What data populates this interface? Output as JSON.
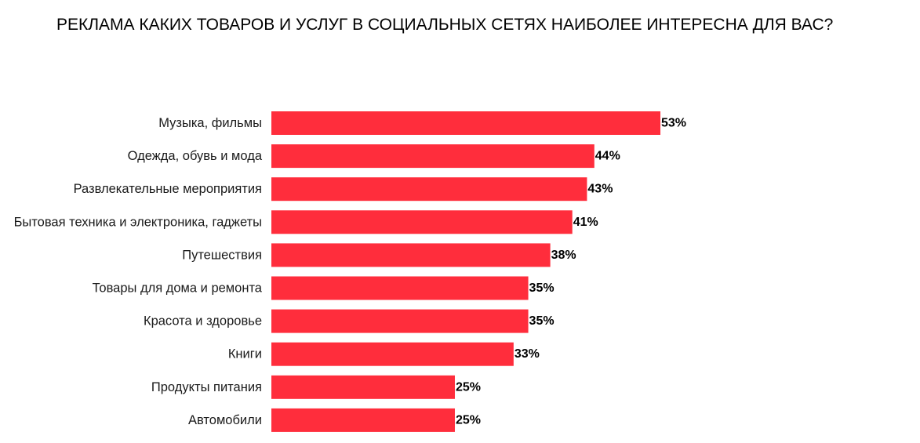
{
  "chart_data": {
    "type": "bar",
    "orientation": "horizontal",
    "title": "РЕКЛАМА КАКИХ ТОВАРОВ И УСЛУГ В СОЦИАЛЬНЫХ СЕТЯХ НАИБОЛЕЕ ИНТЕРЕСНА ДЛЯ ВАС?",
    "categories": [
      "Музыка, фильмы",
      "Одежда, обувь и мода",
      "Развлекательные мероприятия",
      "Бытовая техника и электроника, гаджеты",
      "Путешествия",
      "Товары для дома и ремонта",
      "Красота и здоровье",
      "Книги",
      "Продукты питания",
      "Автомобили"
    ],
    "values": [
      53,
      44,
      43,
      41,
      38,
      35,
      35,
      33,
      25,
      25
    ],
    "value_labels": [
      "53%",
      "44%",
      "43%",
      "41%",
      "38%",
      "35%",
      "35%",
      "33%",
      "25%",
      "25%"
    ],
    "xlim": [
      0,
      53
    ],
    "grid": false,
    "legend": "none",
    "bar_color": "#ff2d3c"
  }
}
